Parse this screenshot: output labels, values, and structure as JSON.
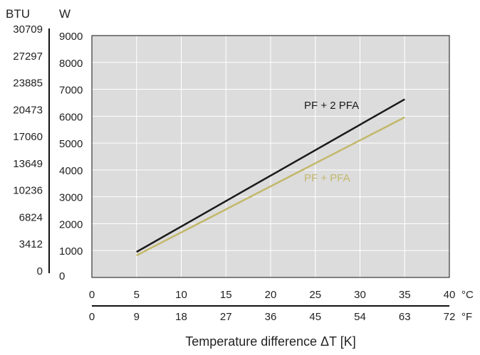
{
  "colors": {
    "plot_bg": "#dcdcdc",
    "grid": "#ffffff",
    "axis": "#111111",
    "series_pf2pfa": "#1a1a1a",
    "series_pfpfa": "#c2b86a"
  },
  "chart_data": {
    "type": "line",
    "xlabel": "Temperature difference ΔT [K]",
    "ylabel_left": "BTU",
    "ylabel_right": "W",
    "x_unit_primary": "°C",
    "x_unit_secondary": "°F",
    "xlim": [
      0,
      40
    ],
    "ylim": [
      0,
      9000
    ],
    "grid": true,
    "x_ticks_c": [
      "0",
      "5",
      "10",
      "15",
      "20",
      "25",
      "30",
      "35",
      "40"
    ],
    "x_ticks_f": [
      "0",
      "9",
      "18",
      "27",
      "36",
      "45",
      "54",
      "63",
      "72"
    ],
    "y_ticks_w": [
      "0",
      "1000",
      "2000",
      "3000",
      "4000",
      "5000",
      "6000",
      "7000",
      "8000",
      "9000"
    ],
    "y_ticks_btu": [
      "0",
      "3412",
      "6824",
      "10236",
      "13649",
      "17060",
      "20473",
      "23885",
      "27297",
      "30709"
    ],
    "series": [
      {
        "name": "PF + 2 PFA",
        "x": [
          5,
          35
        ],
        "y": [
          950,
          6630
        ]
      },
      {
        "name": "PF + PFA",
        "x": [
          5,
          35
        ],
        "y": [
          820,
          5960
        ]
      }
    ]
  }
}
